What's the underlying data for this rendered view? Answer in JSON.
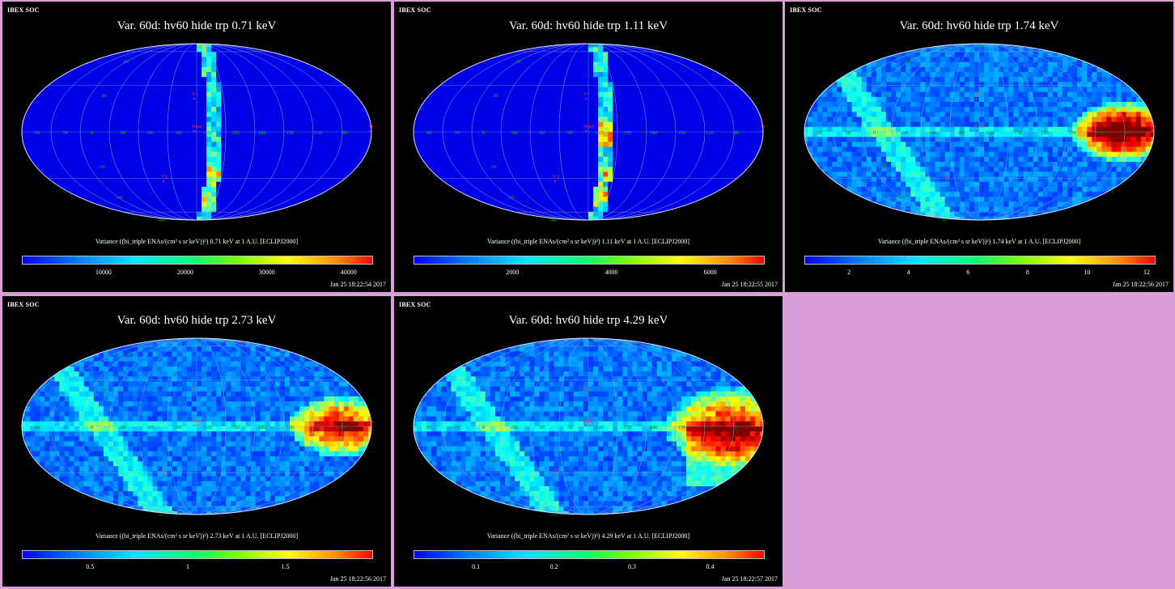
{
  "background": "#dc9ed8",
  "panels": [
    {
      "soc": "IBEX SOC",
      "title": "Var. 60d: hv60 hide trp 0.71 keV",
      "caption": "Variance ((bi_triple ENAs/(cm² s sr keV))²) 0.71 keV at 1 A.U. [ECLIPJ2000]",
      "date": "Jan 25 18:22:54 2017",
      "colorbar": {
        "min": 0,
        "max": 43000,
        "ticks": [
          10000,
          20000,
          30000,
          40000
        ],
        "labels": [
          "10000",
          "20000",
          "30000",
          "40000"
        ]
      },
      "map_style": "stripe",
      "hotspot": "stripe"
    },
    {
      "soc": "IBEX SOC",
      "title": "Var. 60d: hv60 hide trp 1.11 keV",
      "caption": "Variance ((bi_triple ENAs/(cm² s sr keV))²) 1.11 keV at 1 A.U. [ECLIPJ2000]",
      "date": "Jan 25 18:22:55 2017",
      "colorbar": {
        "min": 0,
        "max": 7100,
        "ticks": [
          2000,
          4000,
          6000
        ],
        "labels": [
          "2000",
          "4000",
          "6000"
        ]
      },
      "map_style": "stripe",
      "hotspot": "stripe"
    },
    {
      "soc": "IBEX SOC",
      "title": "Var. 60d: hv60 hide trp 1.74 keV",
      "caption": "Variance ((bi_triple ENAs/(cm² s sr keV))²) 1.74 keV at 1 A.U. [ECLIPJ2000]",
      "date": "Jan 25 18:22:56 2017",
      "colorbar": {
        "min": 0.5,
        "max": 12.3,
        "ticks": [
          2,
          4,
          6,
          8,
          10,
          12
        ],
        "labels": [
          "2",
          "4",
          "6",
          "8",
          "10",
          "12"
        ]
      },
      "map_style": "full",
      "hotspot": "tail-strong"
    },
    {
      "soc": "IBEX SOC",
      "title": "Var. 60d: hv60 hide trp 2.73 keV",
      "caption": "Variance ((bi_triple ENAs/(cm² s sr keV))²) 2.73 keV at 1 A.U. [ECLIPJ2000]",
      "date": "Jan 25 18:22:56 2017",
      "colorbar": {
        "min": 0.15,
        "max": 1.95,
        "ticks": [
          0.5,
          1,
          1.5
        ],
        "labels": [
          "0.5",
          "1",
          "1.5"
        ]
      },
      "map_style": "full",
      "hotspot": "tail-mid"
    },
    {
      "soc": "IBEX SOC",
      "title": "Var. 60d: hv60 hide trp 4.29 keV",
      "caption": "Variance ((bi_triple ENAs/(cm² s sr keV))²) 4.29 keV at 1 A.U. [ECLIPJ2000]",
      "date": "Jan 25 18:22:57 2017",
      "colorbar": {
        "min": 0.02,
        "max": 0.47,
        "ticks": [
          0.1,
          0.2,
          0.3,
          0.4
        ],
        "labels": [
          "0.1",
          "0.2",
          "0.3",
          "0.4"
        ]
      },
      "map_style": "full",
      "hotspot": "tail-wide"
    }
  ],
  "map_labels": {
    "lon_ticks": [
      "60",
      "30",
      "0",
      "-30",
      "-60",
      "-90",
      "-120",
      "-150",
      "180",
      "150",
      "120",
      "90"
    ],
    "lat_ticks": [
      "60",
      "30",
      "-30",
      "-60",
      "-90",
      "90"
    ],
    "markers": {
      "v1": "V1",
      "v2": "V2",
      "nose": "Nose",
      "tail": "Tail"
    }
  },
  "chart_data": [
    {
      "type": "heatmap",
      "title": "Var. 60d: hv60 hide trp 0.71 keV",
      "projection": "Mollweide all-sky",
      "colorbar_range": [
        0,
        43000
      ]
    },
    {
      "type": "heatmap",
      "title": "Var. 60d: hv60 hide trp 1.11 keV",
      "projection": "Mollweide all-sky",
      "colorbar_range": [
        0,
        7100
      ]
    },
    {
      "type": "heatmap",
      "title": "Var. 60d: hv60 hide trp 1.74 keV",
      "projection": "Mollweide all-sky",
      "colorbar_range": [
        0.5,
        12.3
      ]
    },
    {
      "type": "heatmap",
      "title": "Var. 60d: hv60 hide trp 2.73 keV",
      "projection": "Mollweide all-sky",
      "colorbar_range": [
        0.15,
        1.95
      ]
    },
    {
      "type": "heatmap",
      "title": "Var. 60d: hv60 hide trp 4.29 keV",
      "projection": "Mollweide all-sky",
      "colorbar_range": [
        0.02,
        0.47
      ]
    }
  ]
}
